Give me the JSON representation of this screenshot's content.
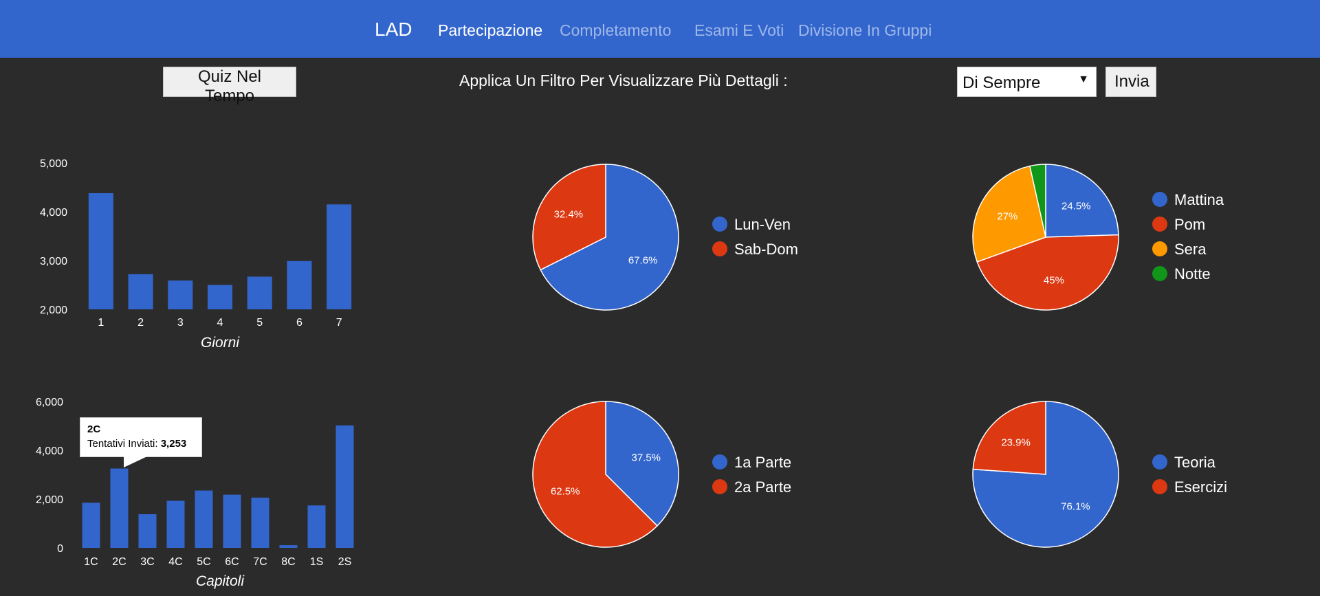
{
  "nav": {
    "brand": "LAD",
    "links": [
      {
        "label": "Partecipazione",
        "active": true
      },
      {
        "label": "Completamento",
        "active": false
      },
      {
        "label": "Esami E Voti",
        "active": false
      },
      {
        "label": "Divisione In Gruppi",
        "active": false
      }
    ]
  },
  "toolbar": {
    "quiz_button": "Quiz Nel Tempo",
    "filter_label": "Applica Un Filtro Per Visualizzare Più Dettagli :",
    "period_select": "Di Sempre",
    "submit_button": "Invia"
  },
  "colors": {
    "blue": "#3366cc",
    "red": "#dc3912",
    "orange": "#ff9900",
    "green": "#109618",
    "navbar": "#3366cc",
    "background": "#2b2b2b"
  },
  "tooltip": {
    "title": "2C",
    "label": "Tentativi Inviati:",
    "value": "3,253"
  },
  "chart_data": [
    {
      "type": "bar",
      "categories": [
        "1",
        "2",
        "3",
        "4",
        "5",
        "6",
        "7"
      ],
      "values": [
        4380,
        2720,
        2590,
        2500,
        2670,
        2990,
        4150
      ],
      "xlabel": "Giorni",
      "ylabel": "",
      "ylim": [
        2000,
        5000
      ],
      "yticks": [
        "2,000",
        "3,000",
        "4,000",
        "5,000"
      ],
      "tick_values": [
        2000,
        3000,
        4000,
        5000
      ]
    },
    {
      "type": "pie",
      "labels": [
        "Lun-Ven",
        "Sab-Dom"
      ],
      "values": [
        67.6,
        32.4
      ],
      "value_labels": [
        "67.6%",
        "32.4%"
      ],
      "colors": [
        "#3366cc",
        "#dc3912"
      ],
      "legend": "right"
    },
    {
      "type": "pie",
      "labels": [
        "Mattina",
        "Pom",
        "Sera",
        "Notte"
      ],
      "values": [
        24.5,
        45,
        27,
        3.5
      ],
      "value_labels": [
        "24.5%",
        "45%",
        "27%",
        ""
      ],
      "colors": [
        "#3366cc",
        "#dc3912",
        "#ff9900",
        "#109618"
      ],
      "legend": "right"
    },
    {
      "type": "bar",
      "categories": [
        "1C",
        "2C",
        "3C",
        "4C",
        "5C",
        "6C",
        "7C",
        "8C",
        "1S",
        "2S"
      ],
      "values": [
        1850,
        3253,
        1380,
        1930,
        2350,
        2180,
        2060,
        110,
        1740,
        5020
      ],
      "xlabel": "Capitoli",
      "ylabel": "",
      "ylim": [
        0,
        6000
      ],
      "yticks": [
        "0",
        "2,000",
        "4,000",
        "6,000"
      ],
      "tick_values": [
        0,
        2000,
        4000,
        6000
      ]
    },
    {
      "type": "pie",
      "labels": [
        "1a Parte",
        "2a Parte"
      ],
      "values": [
        37.5,
        62.5
      ],
      "value_labels": [
        "37.5%",
        "62.5%"
      ],
      "colors": [
        "#3366cc",
        "#dc3912"
      ],
      "legend": "right"
    },
    {
      "type": "pie",
      "labels": [
        "Teoria",
        "Esercizi"
      ],
      "values": [
        76.1,
        23.9
      ],
      "value_labels": [
        "76.1%",
        "23.9%"
      ],
      "colors": [
        "#3366cc",
        "#dc3912"
      ],
      "legend": "right"
    }
  ]
}
